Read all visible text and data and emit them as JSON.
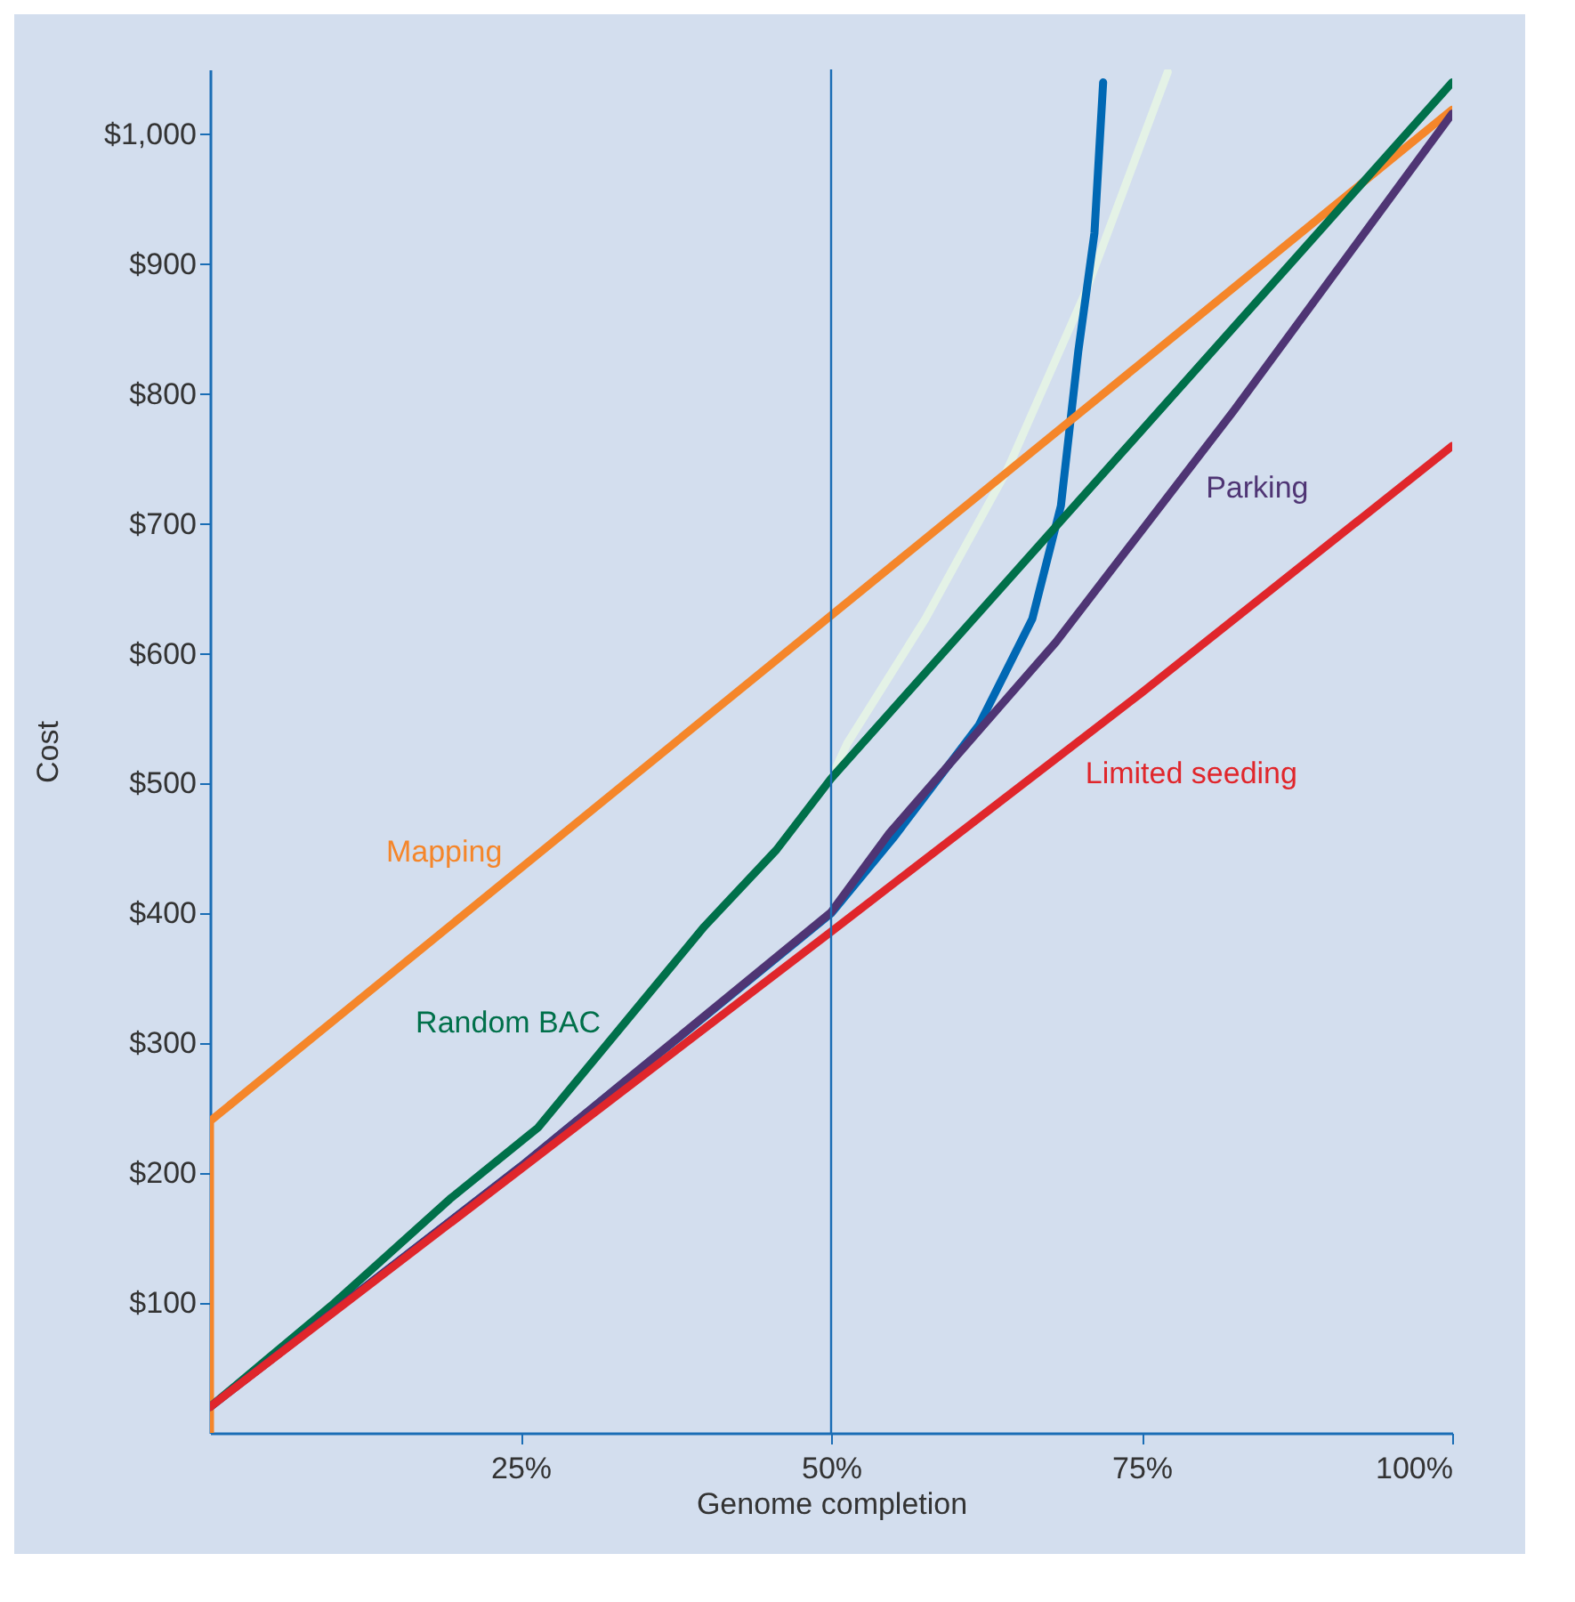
{
  "chart_data": {
    "type": "line",
    "xlabel": "Genome completion",
    "ylabel": "Cost",
    "xlim": [
      0,
      100
    ],
    "ylim": [
      0,
      1050
    ],
    "xticks": [
      {
        "value": 25,
        "label": "25%"
      },
      {
        "value": 50,
        "label": "50%"
      },
      {
        "value": 75,
        "label": "75%"
      },
      {
        "value": 100,
        "label": "100%"
      }
    ],
    "yticks": [
      {
        "value": 100,
        "label": "$100"
      },
      {
        "value": 200,
        "label": "$200"
      },
      {
        "value": 300,
        "label": "$300"
      },
      {
        "value": 400,
        "label": "$400"
      },
      {
        "value": 500,
        "label": "$500"
      },
      {
        "value": 600,
        "label": "$600"
      },
      {
        "value": 700,
        "label": "$700"
      },
      {
        "value": 800,
        "label": "$800"
      },
      {
        "value": 900,
        "label": "$900"
      },
      {
        "value": 1000,
        "label": "$1,000"
      }
    ],
    "grid": false,
    "legend": false,
    "ref_lines": [
      {
        "axis": "x",
        "value": 50,
        "color": "#1a6db5"
      }
    ],
    "series": [
      {
        "color": "#e4f2e6",
        "x": [
          50,
          51.3,
          57.6,
          64.2,
          70.5,
          77.1
        ],
        "values": [
          504,
          531,
          627,
          742,
          879,
          1048
        ]
      },
      {
        "color": "#0068b4",
        "x": [
          0,
          25,
          50,
          55,
          61.9,
          66.2,
          68.5,
          69.9,
          71.2,
          71.9
        ],
        "values": [
          20,
          205,
          400,
          458,
          545,
          627,
          714,
          833,
          924,
          1040
        ]
      },
      {
        "name": "Mapping",
        "color": "#f5862a",
        "x": [
          0,
          0,
          100
        ],
        "values": [
          0,
          240,
          1019
        ]
      },
      {
        "name": "Random BAC",
        "color": "#00704a",
        "x": [
          0,
          10,
          19.3,
          26.4,
          39.8,
          45.6,
          50,
          100
        ],
        "values": [
          20,
          100,
          180,
          235,
          390,
          449,
          504,
          1040
        ]
      },
      {
        "name": "Parking",
        "color": "#4f3574",
        "x": [
          0,
          25,
          50,
          54.7,
          68.1,
          82.4,
          100
        ],
        "values": [
          20,
          205,
          401,
          462,
          609,
          787,
          1016
        ]
      },
      {
        "name": "Limited seeding",
        "color": "#e0262b",
        "x": [
          0,
          25,
          50,
          75,
          100
        ],
        "values": [
          20,
          203,
          386,
          570,
          760
        ]
      }
    ]
  }
}
